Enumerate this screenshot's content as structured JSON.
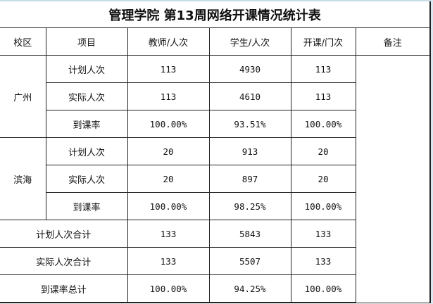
{
  "title": "管理学院  第13周网络开课情况统计表",
  "headers": [
    "校区",
    "项目",
    "教师/人次",
    "学生/人次",
    "开课/门次",
    "备注"
  ],
  "campuses": [
    {
      "name": "广州",
      "rows": [
        {
          "item": "计划人次",
          "teacher": "113",
          "student": "4930",
          "course": "113"
        },
        {
          "item": "实际人次",
          "teacher": "113",
          "student": "4610",
          "course": "113"
        },
        {
          "item": "到课率",
          "teacher": "100.00%",
          "student": "93.51%",
          "course": "100.00%"
        }
      ]
    },
    {
      "name": "滨海",
      "rows": [
        {
          "item": "计划人次",
          "teacher": "20",
          "student": "913",
          "course": "20"
        },
        {
          "item": "实际人次",
          "teacher": "20",
          "student": "897",
          "course": "20"
        },
        {
          "item": "到课率",
          "teacher": "100.00%",
          "student": "98.25%",
          "course": "100.00%"
        }
      ]
    }
  ],
  "totals": [
    {
      "item": "计划人次合计",
      "teacher": "133",
      "student": "5843",
      "course": "133"
    },
    {
      "item": "实际人次合计",
      "teacher": "133",
      "student": "5507",
      "course": "133"
    },
    {
      "item": "到课率总计",
      "teacher": "100.00%",
      "student": "94.25%",
      "course": "100.00%"
    }
  ],
  "remarks": ""
}
